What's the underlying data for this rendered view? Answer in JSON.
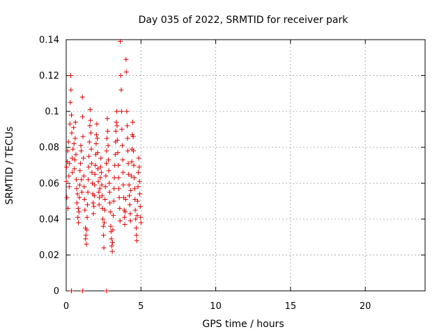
{
  "chart_data": {
    "type": "scatter",
    "title": "Day 035 of 2022, SRMTID for receiver park",
    "xlabel": "GPS time / hours",
    "ylabel": "SRMTID / TECUs",
    "xlim": [
      0,
      24
    ],
    "ylim": [
      0,
      0.14
    ],
    "x_ticks": [
      0,
      5,
      10,
      15,
      20
    ],
    "y_ticks": [
      0,
      0.02,
      0.04,
      0.06,
      0.08,
      0.1,
      0.12,
      0.14
    ],
    "x_tick_labels": [
      "0",
      "5",
      "10",
      "15",
      "20"
    ],
    "y_tick_labels": [
      "0",
      "0.02",
      "0.04",
      "0.06",
      "0.08",
      "0.1",
      "0.12",
      "0.14"
    ],
    "grid": true,
    "marker": "+",
    "color": "#dd0000",
    "series": [
      {
        "points": [
          [
            0.0,
            0.061
          ],
          [
            0.02,
            0.069
          ],
          [
            0.05,
            0.052
          ],
          [
            0.08,
            0.072
          ],
          [
            0.1,
            0.078
          ],
          [
            0.12,
            0.046
          ],
          [
            0.15,
            0.083
          ],
          [
            0.18,
            0.064
          ],
          [
            0.2,
            0.058
          ],
          [
            0.22,
            0.071
          ],
          [
            0.25,
            0.093
          ],
          [
            0.27,
            0.105
          ],
          [
            0.3,
            0.12
          ],
          [
            0.32,
            0.112
          ],
          [
            0.35,
            0.098
          ],
          [
            0.37,
            0.088
          ],
          [
            0.4,
            0.074
          ],
          [
            0.42,
            0.066
          ],
          [
            0.45,
            0.079
          ],
          [
            0.5,
            0.091
          ],
          [
            0.52,
            0.082
          ],
          [
            0.55,
            0.068
          ],
          [
            0.58,
            0.073
          ],
          [
            0.6,
            0.085
          ],
          [
            0.62,
            0.094
          ],
          [
            0.65,
            0.076
          ],
          [
            0.68,
            0.062
          ],
          [
            0.7,
            0.057
          ],
          [
            0.72,
            0.049
          ],
          [
            0.75,
            0.054
          ],
          [
            0.78,
            0.041
          ],
          [
            0.8,
            0.046
          ],
          [
            0.82,
            0.038
          ],
          [
            0.85,
            0.044
          ],
          [
            0.88,
            0.052
          ],
          [
            0.9,
            0.059
          ],
          [
            0.92,
            0.067
          ],
          [
            0.95,
            0.071
          ],
          [
            0.98,
            0.081
          ],
          [
            1.0,
            0.078
          ],
          [
            1.02,
            0.062
          ],
          [
            1.05,
            0.055
          ],
          [
            1.08,
            0.108
          ],
          [
            1.1,
            0.097
          ],
          [
            1.12,
            0.086
          ],
          [
            1.15,
            0.074
          ],
          [
            1.18,
            0.064
          ],
          [
            1.2,
            0.058
          ],
          [
            1.22,
            0.051
          ],
          [
            1.25,
            0.045
          ],
          [
            1.28,
            0.035
          ],
          [
            1.3,
            0.029
          ],
          [
            1.32,
            0.031
          ],
          [
            1.35,
            0.026
          ],
          [
            1.38,
            0.034
          ],
          [
            1.4,
            0.041
          ],
          [
            1.42,
            0.048
          ],
          [
            1.45,
            0.055
          ],
          [
            1.48,
            0.062
          ],
          [
            1.5,
            0.069
          ],
          [
            1.52,
            0.075
          ],
          [
            1.55,
            0.083
          ],
          [
            1.58,
            0.092
          ],
          [
            1.6,
            0.101
          ],
          [
            1.62,
            0.095
          ],
          [
            1.65,
            0.088
          ],
          [
            1.68,
            0.079
          ],
          [
            1.7,
            0.071
          ],
          [
            1.72,
            0.066
          ],
          [
            1.75,
            0.06
          ],
          [
            1.78,
            0.054
          ],
          [
            1.8,
            0.049
          ],
          [
            1.82,
            0.043
          ],
          [
            1.85,
            0.047
          ],
          [
            1.88,
            0.053
          ],
          [
            1.9,
            0.059
          ],
          [
            1.92,
            0.065
          ],
          [
            1.95,
            0.07
          ],
          [
            1.98,
            0.076
          ],
          [
            2.0,
            0.082
          ],
          [
            2.02,
            0.087
          ],
          [
            2.05,
            0.093
          ],
          [
            2.08,
            0.085
          ],
          [
            2.1,
            0.077
          ],
          [
            2.12,
            0.068
          ],
          [
            2.15,
            0.061
          ],
          [
            2.18,
            0.055
          ],
          [
            2.2,
            0.048
          ],
          [
            2.22,
            0.052
          ],
          [
            2.25,
            0.057
          ],
          [
            2.28,
            0.063
          ],
          [
            2.3,
            0.069
          ],
          [
            2.32,
            0.074
          ],
          [
            2.35,
            0.066
          ],
          [
            2.38,
            0.059
          ],
          [
            2.4,
            0.053
          ],
          [
            2.42,
            0.046
          ],
          [
            2.45,
            0.04
          ],
          [
            2.48,
            0.036
          ],
          [
            2.5,
            0.031
          ],
          [
            2.52,
            0.024
          ],
          [
            2.55,
            0.038
          ],
          [
            2.58,
            0.045
          ],
          [
            2.6,
            0.051
          ],
          [
            2.62,
            0.058
          ],
          [
            2.65,
            0.064
          ],
          [
            2.68,
            0.071
          ],
          [
            2.7,
            0.078
          ],
          [
            2.72,
            0.085
          ],
          [
            2.75,
            0.096
          ],
          [
            2.78,
            0.089
          ],
          [
            2.8,
            0.081
          ],
          [
            2.82,
            0.073
          ],
          [
            2.85,
            0.067
          ],
          [
            2.88,
            0.06
          ],
          [
            2.9,
            0.055
          ],
          [
            2.92,
            0.049
          ],
          [
            2.95,
            0.044
          ],
          [
            2.98,
            0.036
          ],
          [
            3.0,
            0.033
          ],
          [
            3.02,
            0.029
          ],
          [
            3.05,
            0.025
          ],
          [
            3.08,
            0.022
          ],
          [
            3.1,
            0.027
          ],
          [
            3.12,
            0.034
          ],
          [
            3.15,
            0.042
          ],
          [
            3.18,
            0.05
          ],
          [
            3.2,
            0.057
          ],
          [
            3.22,
            0.063
          ],
          [
            3.25,
            0.07
          ],
          [
            3.28,
            0.076
          ],
          [
            3.3,
            0.083
          ],
          [
            3.32,
            0.089
          ],
          [
            3.35,
            0.094
          ],
          [
            3.38,
            0.1
          ],
          [
            3.4,
            0.092
          ],
          [
            3.42,
            0.084
          ],
          [
            3.45,
            0.077
          ],
          [
            3.48,
            0.07
          ],
          [
            3.5,
            0.063
          ],
          [
            3.52,
            0.057
          ],
          [
            3.55,
            0.052
          ],
          [
            3.58,
            0.046
          ],
          [
            3.6,
            0.039
          ],
          [
            3.62,
            0.139
          ],
          [
            3.65,
            0.12
          ],
          [
            3.68,
            0.112
          ],
          [
            3.7,
            0.1
          ],
          [
            3.72,
            0.09
          ],
          [
            3.75,
            0.081
          ],
          [
            3.78,
            0.073
          ],
          [
            3.8,
            0.066
          ],
          [
            3.82,
            0.059
          ],
          [
            3.85,
            0.052
          ],
          [
            3.88,
            0.045
          ],
          [
            3.9,
            0.041
          ],
          [
            3.92,
            0.037
          ],
          [
            3.95,
            0.044
          ],
          [
            3.98,
            0.051
          ],
          [
            4.0,
            0.129
          ],
          [
            4.02,
            0.122
          ],
          [
            4.05,
            0.1
          ],
          [
            4.08,
            0.092
          ],
          [
            4.1,
            0.085
          ],
          [
            4.12,
            0.078
          ],
          [
            4.15,
            0.071
          ],
          [
            4.18,
            0.065
          ],
          [
            4.2,
            0.059
          ],
          [
            4.22,
            0.053
          ],
          [
            4.25,
            0.048
          ],
          [
            4.28,
            0.043
          ],
          [
            4.3,
            0.039
          ],
          [
            4.32,
            0.056
          ],
          [
            4.35,
            0.064
          ],
          [
            4.38,
            0.072
          ],
          [
            4.4,
            0.079
          ],
          [
            4.42,
            0.087
          ],
          [
            4.45,
            0.094
          ],
          [
            4.48,
            0.086
          ],
          [
            4.5,
            0.078
          ],
          [
            4.52,
            0.07
          ],
          [
            4.55,
            0.063
          ],
          [
            4.58,
            0.057
          ],
          [
            4.6,
            0.051
          ],
          [
            4.62,
            0.045
          ],
          [
            4.65,
            0.04
          ],
          [
            4.68,
            0.035
          ],
          [
            4.7,
            0.031
          ],
          [
            4.72,
            0.028
          ],
          [
            4.75,
            0.042
          ],
          [
            4.78,
            0.05
          ],
          [
            4.8,
            0.058
          ],
          [
            4.82,
            0.066
          ],
          [
            4.85,
            0.074
          ],
          [
            4.88,
            0.069
          ],
          [
            4.9,
            0.061
          ],
          [
            4.92,
            0.054
          ],
          [
            4.95,
            0.047
          ],
          [
            4.98,
            0.041
          ],
          [
            5.0,
            0.038
          ],
          [
            0.35,
            0.0
          ],
          [
            1.1,
            0.0
          ],
          [
            2.7,
            0.0
          ]
        ]
      }
    ]
  }
}
